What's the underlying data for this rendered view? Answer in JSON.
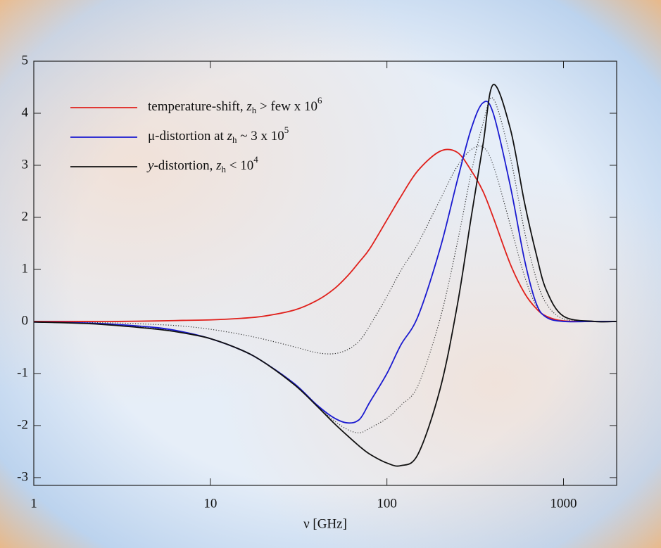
{
  "chart_data": {
    "type": "line",
    "xlabel": "ν [GHz]",
    "xscale": "log",
    "xlim": [
      1,
      2000
    ],
    "xticks": [
      1,
      10,
      100,
      1000
    ],
    "ylim": [
      -3.15,
      5
    ],
    "yticks": [
      5,
      4,
      3,
      2,
      1,
      0,
      -1,
      -2,
      -3
    ],
    "x": [
      1,
      2,
      3,
      5,
      7,
      10,
      15,
      20,
      30,
      40,
      50,
      60,
      70,
      80,
      100,
      120,
      150,
      200,
      250,
      300,
      350,
      400,
      500,
      600,
      700,
      800,
      1000,
      1500,
      2000
    ],
    "series": [
      {
        "color": "#333333",
        "style": "dotted",
        "values": [
          -0.01,
          -0.02,
          -0.03,
          -0.06,
          -0.09,
          -0.15,
          -0.25,
          -0.34,
          -0.49,
          -0.6,
          -0.62,
          -0.54,
          -0.37,
          -0.08,
          0.48,
          0.98,
          1.5,
          2.34,
          2.98,
          3.3,
          3.35,
          3.0,
          1.85,
          0.88,
          0.3,
          0.09,
          0.01,
          0,
          0
        ]
      },
      {
        "color": "#333333",
        "style": "dotted",
        "values": [
          -0.01,
          -0.04,
          -0.07,
          -0.14,
          -0.21,
          -0.33,
          -0.55,
          -0.78,
          -1.21,
          -1.61,
          -1.9,
          -2.08,
          -2.14,
          -2.05,
          -1.86,
          -1.61,
          -1.23,
          0.05,
          1.5,
          2.85,
          3.8,
          4.28,
          3.15,
          1.75,
          0.83,
          0.34,
          0.05,
          0,
          0
        ]
      },
      {
        "name": [
          {
            "text": "temperature-shift, "
          },
          {
            "text": "z",
            "style": "italic"
          },
          {
            "text": "h",
            "style": "sub"
          },
          {
            "text": " > few x 10"
          },
          {
            "text": "6",
            "style": "sup"
          }
        ],
        "color": "#e0201b",
        "style": "solid",
        "values": [
          0,
          0,
          0,
          0.01,
          0.02,
          0.03,
          0.06,
          0.1,
          0.22,
          0.4,
          0.62,
          0.88,
          1.15,
          1.4,
          1.95,
          2.4,
          2.9,
          3.27,
          3.25,
          2.9,
          2.5,
          2.0,
          1.1,
          0.55,
          0.25,
          0.1,
          0.01,
          0,
          0
        ]
      },
      {
        "name": [
          {
            "text": "μ-distortion at "
          },
          {
            "text": "z",
            "style": "italic"
          },
          {
            "text": "h",
            "style": "sub"
          },
          {
            "text": " ~ 3 x 10"
          },
          {
            "text": "5",
            "style": "sup"
          }
        ],
        "color": "#1a1ad0",
        "style": "solid",
        "values": [
          -0.01,
          -0.03,
          -0.06,
          -0.12,
          -0.2,
          -0.33,
          -0.55,
          -0.78,
          -1.2,
          -1.6,
          -1.85,
          -1.95,
          -1.88,
          -1.55,
          -1.0,
          -0.45,
          0.1,
          1.4,
          2.7,
          3.7,
          4.2,
          4.0,
          2.6,
          1.2,
          0.35,
          0.08,
          0,
          0,
          0
        ]
      },
      {
        "name": [
          {
            "text": "y",
            "style": "italic"
          },
          {
            "text": "-distortion, "
          },
          {
            "text": "z",
            "style": "italic"
          },
          {
            "text": "h",
            "style": "sub"
          },
          {
            "text": " < 10"
          },
          {
            "text": "4",
            "style": "sup"
          }
        ],
        "color": "#111111",
        "style": "solid",
        "values": [
          -0.01,
          -0.04,
          -0.08,
          -0.15,
          -0.22,
          -0.33,
          -0.55,
          -0.78,
          -1.22,
          -1.62,
          -1.95,
          -2.2,
          -2.4,
          -2.55,
          -2.72,
          -2.77,
          -2.55,
          -1.3,
          0.3,
          2.0,
          3.4,
          4.55,
          3.7,
          2.3,
          1.3,
          0.6,
          0.1,
          0,
          0
        ]
      }
    ],
    "legend": "upper-left"
  }
}
